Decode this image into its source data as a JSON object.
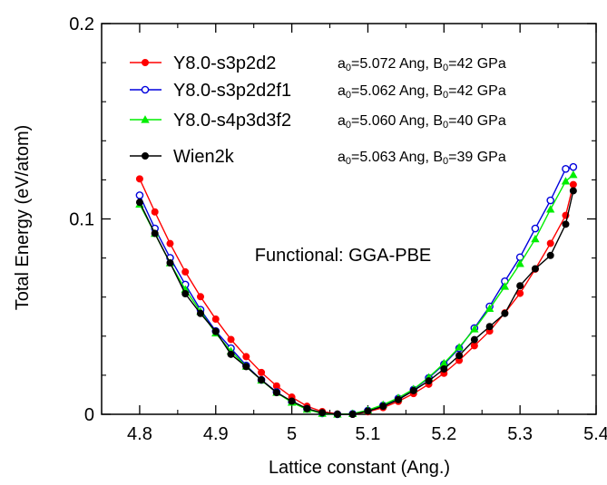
{
  "chart_data": {
    "type": "line",
    "xlabel": "Lattice constant (Ang.)",
    "ylabel": "Total Energy (eV/atom)",
    "xlim": [
      4.75,
      5.4
    ],
    "ylim": [
      0,
      0.2
    ],
    "x_ticks": [
      4.8,
      4.9,
      5.0,
      5.1,
      5.2,
      5.3,
      5.4
    ],
    "x_tick_labels": [
      "4.8",
      "4.9",
      "5",
      "5.1",
      "5.2",
      "5.3",
      "5.4"
    ],
    "y_ticks": [
      0,
      0.1,
      0.2
    ],
    "y_tick_labels": [
      "0",
      "0.1",
      "0.2"
    ],
    "grid": false,
    "legend_position": "top-left",
    "annotation": "Functional: GGA-PBE",
    "series": [
      {
        "name": "Y8.0-s3p2d2",
        "color": "#ff0000",
        "marker": "filled-circle",
        "info": {
          "a_sub": "0",
          "a_val": "=5.072 Ang, B",
          "b_sub": "0",
          "b_val": "=42 GPa"
        },
        "x": [
          4.8,
          4.82,
          4.84,
          4.86,
          4.88,
          4.9,
          4.92,
          4.94,
          4.96,
          4.98,
          5.0,
          5.02,
          5.04,
          5.06,
          5.08,
          5.1,
          5.12,
          5.14,
          5.16,
          5.18,
          5.2,
          5.22,
          5.24,
          5.26,
          5.28,
          5.3,
          5.32,
          5.34,
          5.36,
          5.37
        ],
        "y": [
          0.1205,
          0.1036,
          0.0874,
          0.0729,
          0.0602,
          0.0487,
          0.0383,
          0.0295,
          0.0214,
          0.0145,
          0.0088,
          0.0041,
          0.0014,
          0.0002,
          0.0,
          0.0013,
          0.0034,
          0.0066,
          0.0106,
          0.0154,
          0.021,
          0.0276,
          0.0351,
          0.0426,
          0.0519,
          0.0619,
          0.0743,
          0.0875,
          0.1018,
          0.1176
        ]
      },
      {
        "name": "Y8.0-s3p2d2f1",
        "color": "#0000dd",
        "marker": "open-circle",
        "info": {
          "a_sub": "0",
          "a_val": "=5.062 Ang, B",
          "b_sub": "0",
          "b_val": "=42 GPa"
        },
        "x": [
          4.8,
          4.82,
          4.84,
          4.86,
          4.88,
          4.9,
          4.92,
          4.94,
          4.96,
          4.98,
          5.0,
          5.02,
          5.04,
          5.06,
          5.08,
          5.1,
          5.12,
          5.14,
          5.16,
          5.18,
          5.2,
          5.22,
          5.24,
          5.26,
          5.28,
          5.3,
          5.32,
          5.34,
          5.36,
          5.37
        ],
        "y": [
          0.1121,
          0.0951,
          0.0801,
          0.0664,
          0.0535,
          0.0426,
          0.0338,
          0.025,
          0.0176,
          0.0114,
          0.0064,
          0.0028,
          0.0005,
          0.0,
          0.0002,
          0.0019,
          0.0045,
          0.0081,
          0.0126,
          0.0186,
          0.0256,
          0.0338,
          0.0441,
          0.0552,
          0.0681,
          0.0804,
          0.0951,
          0.1095,
          0.1256,
          0.1266
        ]
      },
      {
        "name": "Y8.0-s4p3d3f2",
        "color": "#00ee00",
        "marker": "filled-triangle",
        "info": {
          "a_sub": "0",
          "a_val": "=5.060 Ang, B",
          "b_sub": "0",
          "b_val": "=40 GPa"
        },
        "x": [
          4.8,
          4.82,
          4.84,
          4.86,
          4.88,
          4.9,
          4.92,
          4.94,
          4.96,
          4.98,
          5.0,
          5.02,
          5.04,
          5.06,
          5.08,
          5.1,
          5.12,
          5.14,
          5.16,
          5.18,
          5.2,
          5.22,
          5.24,
          5.26,
          5.28,
          5.3,
          5.32,
          5.34,
          5.36,
          5.37
        ],
        "y": [
          0.1075,
          0.0925,
          0.0774,
          0.0639,
          0.0526,
          0.0415,
          0.0323,
          0.0245,
          0.0174,
          0.0111,
          0.0061,
          0.0025,
          0.0004,
          0.0,
          0.0003,
          0.0021,
          0.0049,
          0.0084,
          0.0129,
          0.0189,
          0.0261,
          0.0343,
          0.0436,
          0.0541,
          0.0654,
          0.0771,
          0.0897,
          0.1049,
          0.1193,
          0.1226
        ]
      },
      {
        "name": "Wien2k",
        "color": "#000000",
        "marker": "filled-circle",
        "info": {
          "a_sub": "0",
          "a_val": "=5.063 Ang, B",
          "b_sub": "0",
          "b_val": "=39 GPa"
        },
        "x": [
          4.8,
          4.82,
          4.84,
          4.86,
          4.88,
          4.9,
          4.92,
          4.94,
          4.96,
          4.98,
          5.0,
          5.02,
          5.04,
          5.06,
          5.08,
          5.1,
          5.12,
          5.14,
          5.16,
          5.18,
          5.2,
          5.22,
          5.24,
          5.26,
          5.28,
          5.3,
          5.32,
          5.34,
          5.36,
          5.37
        ],
        "y": [
          0.1085,
          0.0926,
          0.0775,
          0.0617,
          0.0516,
          0.0424,
          0.0307,
          0.0244,
          0.0176,
          0.0111,
          0.0067,
          0.0029,
          0.0008,
          0.0,
          0.0,
          0.0016,
          0.0041,
          0.0075,
          0.0121,
          0.0171,
          0.0232,
          0.0301,
          0.0382,
          0.0449,
          0.0516,
          0.0658,
          0.0745,
          0.0813,
          0.0973,
          0.1144
        ]
      }
    ]
  }
}
